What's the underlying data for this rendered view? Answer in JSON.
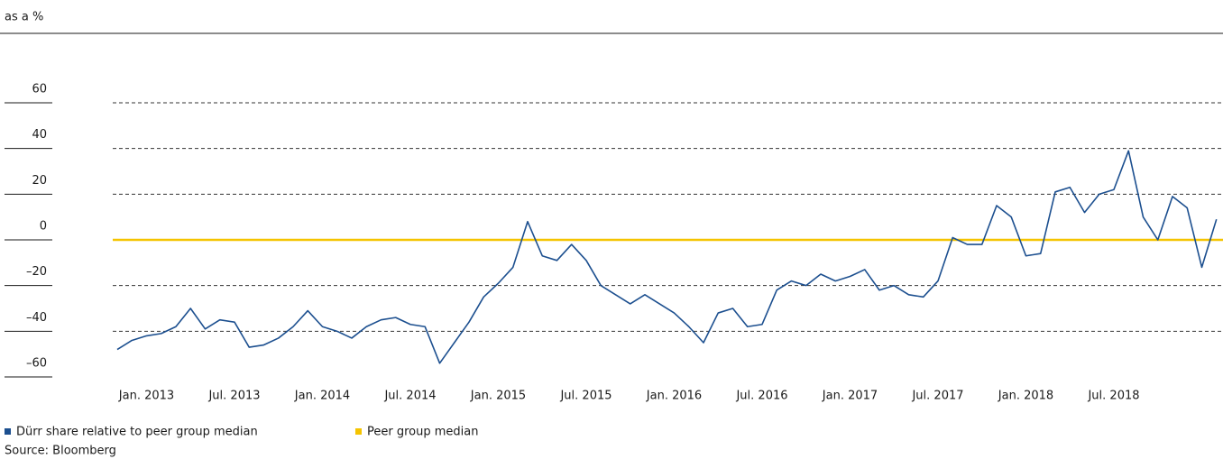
{
  "chart_data": {
    "type": "line",
    "axis_label": "as a %",
    "x": [
      "2012-11",
      "2012-12",
      "2013-01",
      "2013-02",
      "2013-03",
      "2013-04",
      "2013-05",
      "2013-06",
      "2013-07",
      "2013-08",
      "2013-09",
      "2013-10",
      "2013-11",
      "2013-12",
      "2014-01",
      "2014-02",
      "2014-03",
      "2014-04",
      "2014-05",
      "2014-06",
      "2014-07",
      "2014-08",
      "2014-09",
      "2014-10",
      "2014-11",
      "2014-12",
      "2015-01",
      "2015-02",
      "2015-03",
      "2015-04",
      "2015-05",
      "2015-06",
      "2015-07",
      "2015-08",
      "2015-09",
      "2015-10",
      "2015-11",
      "2015-12",
      "2016-01",
      "2016-02",
      "2016-03",
      "2016-04",
      "2016-05",
      "2016-06",
      "2016-07",
      "2016-08",
      "2016-09",
      "2016-10",
      "2016-11",
      "2016-12",
      "2017-01",
      "2017-02",
      "2017-03",
      "2017-04",
      "2017-05",
      "2017-06",
      "2017-07",
      "2017-08",
      "2017-09",
      "2017-10",
      "2017-11",
      "2017-12",
      "2018-01",
      "2018-02",
      "2018-03",
      "2018-04",
      "2018-05",
      "2018-06",
      "2018-07",
      "2018-08",
      "2018-09",
      "2018-10",
      "2018-11",
      "2018-12",
      "2019-01",
      "2019-02"
    ],
    "series": [
      {
        "name": "Dürr share relative to peer group median",
        "color": "#1c4f8f",
        "values": [
          -48,
          -44,
          -42,
          -41,
          -38,
          -30,
          -39,
          -35,
          -36,
          -47,
          -46,
          -43,
          -38,
          -31,
          -38,
          -40,
          -43,
          -38,
          -35,
          -34,
          -37,
          -38,
          -54,
          -45,
          -36,
          -25,
          -19,
          -12,
          8,
          -7,
          -9,
          -2,
          -9,
          -20,
          -24,
          -28,
          -24,
          -28,
          -32,
          -38,
          -45,
          -32,
          -30,
          -38,
          -37,
          -22,
          -18,
          -20,
          -15,
          -18,
          -16,
          -13,
          -22,
          -20,
          -24,
          -25,
          -18,
          1,
          -2,
          -2,
          15,
          10,
          -7,
          -6,
          21,
          23,
          12,
          20,
          22,
          39,
          10,
          0,
          19,
          14,
          -12,
          9
        ]
      }
    ],
    "reference_line": {
      "name": "Peer group median",
      "value": 0,
      "color": "#f5c400"
    },
    "xticks": [
      {
        "value": "2013-01",
        "label": "Jan. 2013"
      },
      {
        "value": "2013-07",
        "label": "Jul. 2013"
      },
      {
        "value": "2014-01",
        "label": "Jan. 2014"
      },
      {
        "value": "2014-07",
        "label": "Jul. 2014"
      },
      {
        "value": "2015-01",
        "label": "Jan. 2015"
      },
      {
        "value": "2015-07",
        "label": "Jul. 2015"
      },
      {
        "value": "2016-01",
        "label": "Jan. 2016"
      },
      {
        "value": "2016-07",
        "label": "Jul. 2016"
      },
      {
        "value": "2017-01",
        "label": "Jan. 2017"
      },
      {
        "value": "2017-07",
        "label": "Jul. 2017"
      },
      {
        "value": "2018-01",
        "label": "Jan. 2018"
      },
      {
        "value": "2018-07",
        "label": "Jul. 2018"
      }
    ],
    "ylim": [
      -60,
      60
    ],
    "yticks": [
      60,
      40,
      20,
      0,
      {
        "value": -20,
        "label": "–20"
      },
      {
        "value": -40,
        "label": "–40"
      },
      {
        "value": -60,
        "label": "–60"
      }
    ],
    "grid": true,
    "source": "Source: Bloomberg"
  }
}
